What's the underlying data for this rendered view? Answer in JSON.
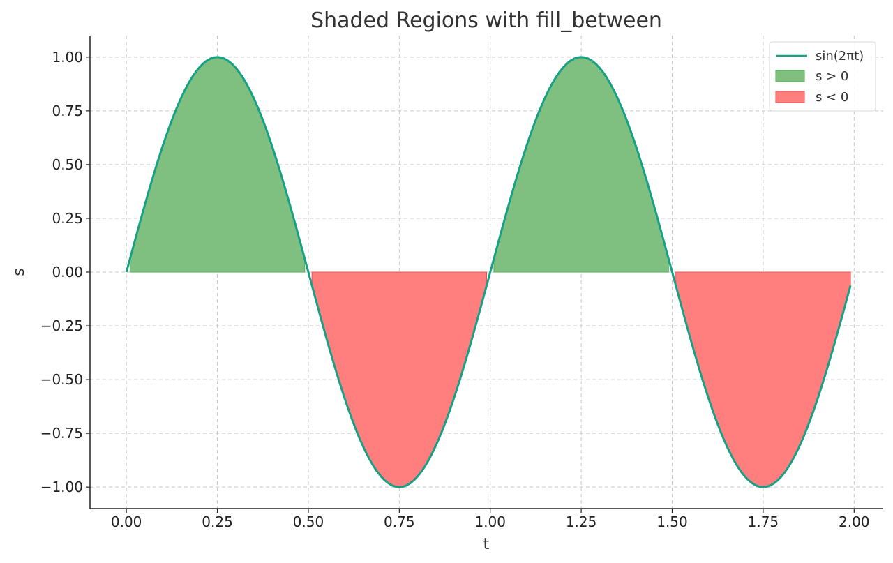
{
  "chart_data": {
    "type": "area",
    "title": "Shaded Regions with fill_between",
    "xlabel": "t",
    "ylabel": "s",
    "xlim": [
      -0.1,
      2.08
    ],
    "ylim": [
      -1.1,
      1.1
    ],
    "x_ticks": [
      0.0,
      0.25,
      0.5,
      0.75,
      1.0,
      1.25,
      1.5,
      1.75,
      2.0
    ],
    "x_tick_labels": [
      "0.00",
      "0.25",
      "0.50",
      "0.75",
      "1.00",
      "1.25",
      "1.50",
      "1.75",
      "2.00"
    ],
    "y_ticks": [
      1.0,
      0.75,
      0.5,
      0.25,
      0.0,
      -0.25,
      -0.5,
      -0.75,
      -1.0
    ],
    "y_tick_labels": [
      "1.00",
      "0.75",
      "0.50",
      "0.25",
      "0.00",
      "−0.25",
      "−0.50",
      "−0.75",
      "−1.00"
    ],
    "grid": true,
    "legend_position": "top-right",
    "series": [
      {
        "name": "sin(2πt)",
        "kind": "line",
        "function": "sin(2*pi*t)",
        "t_range": [
          0.0,
          1.99
        ],
        "t_step": 0.01,
        "color": "#16a085"
      },
      {
        "name": "s > 0",
        "kind": "fill",
        "where": "s > 0",
        "fill_to": 0,
        "color": "#7fbf7f",
        "edge_color": "#4caf50"
      },
      {
        "name": "s < 0",
        "kind": "fill",
        "where": "s < 0",
        "fill_to": 0,
        "color": "#ff7f7f",
        "edge_color": "#f05050"
      }
    ]
  }
}
